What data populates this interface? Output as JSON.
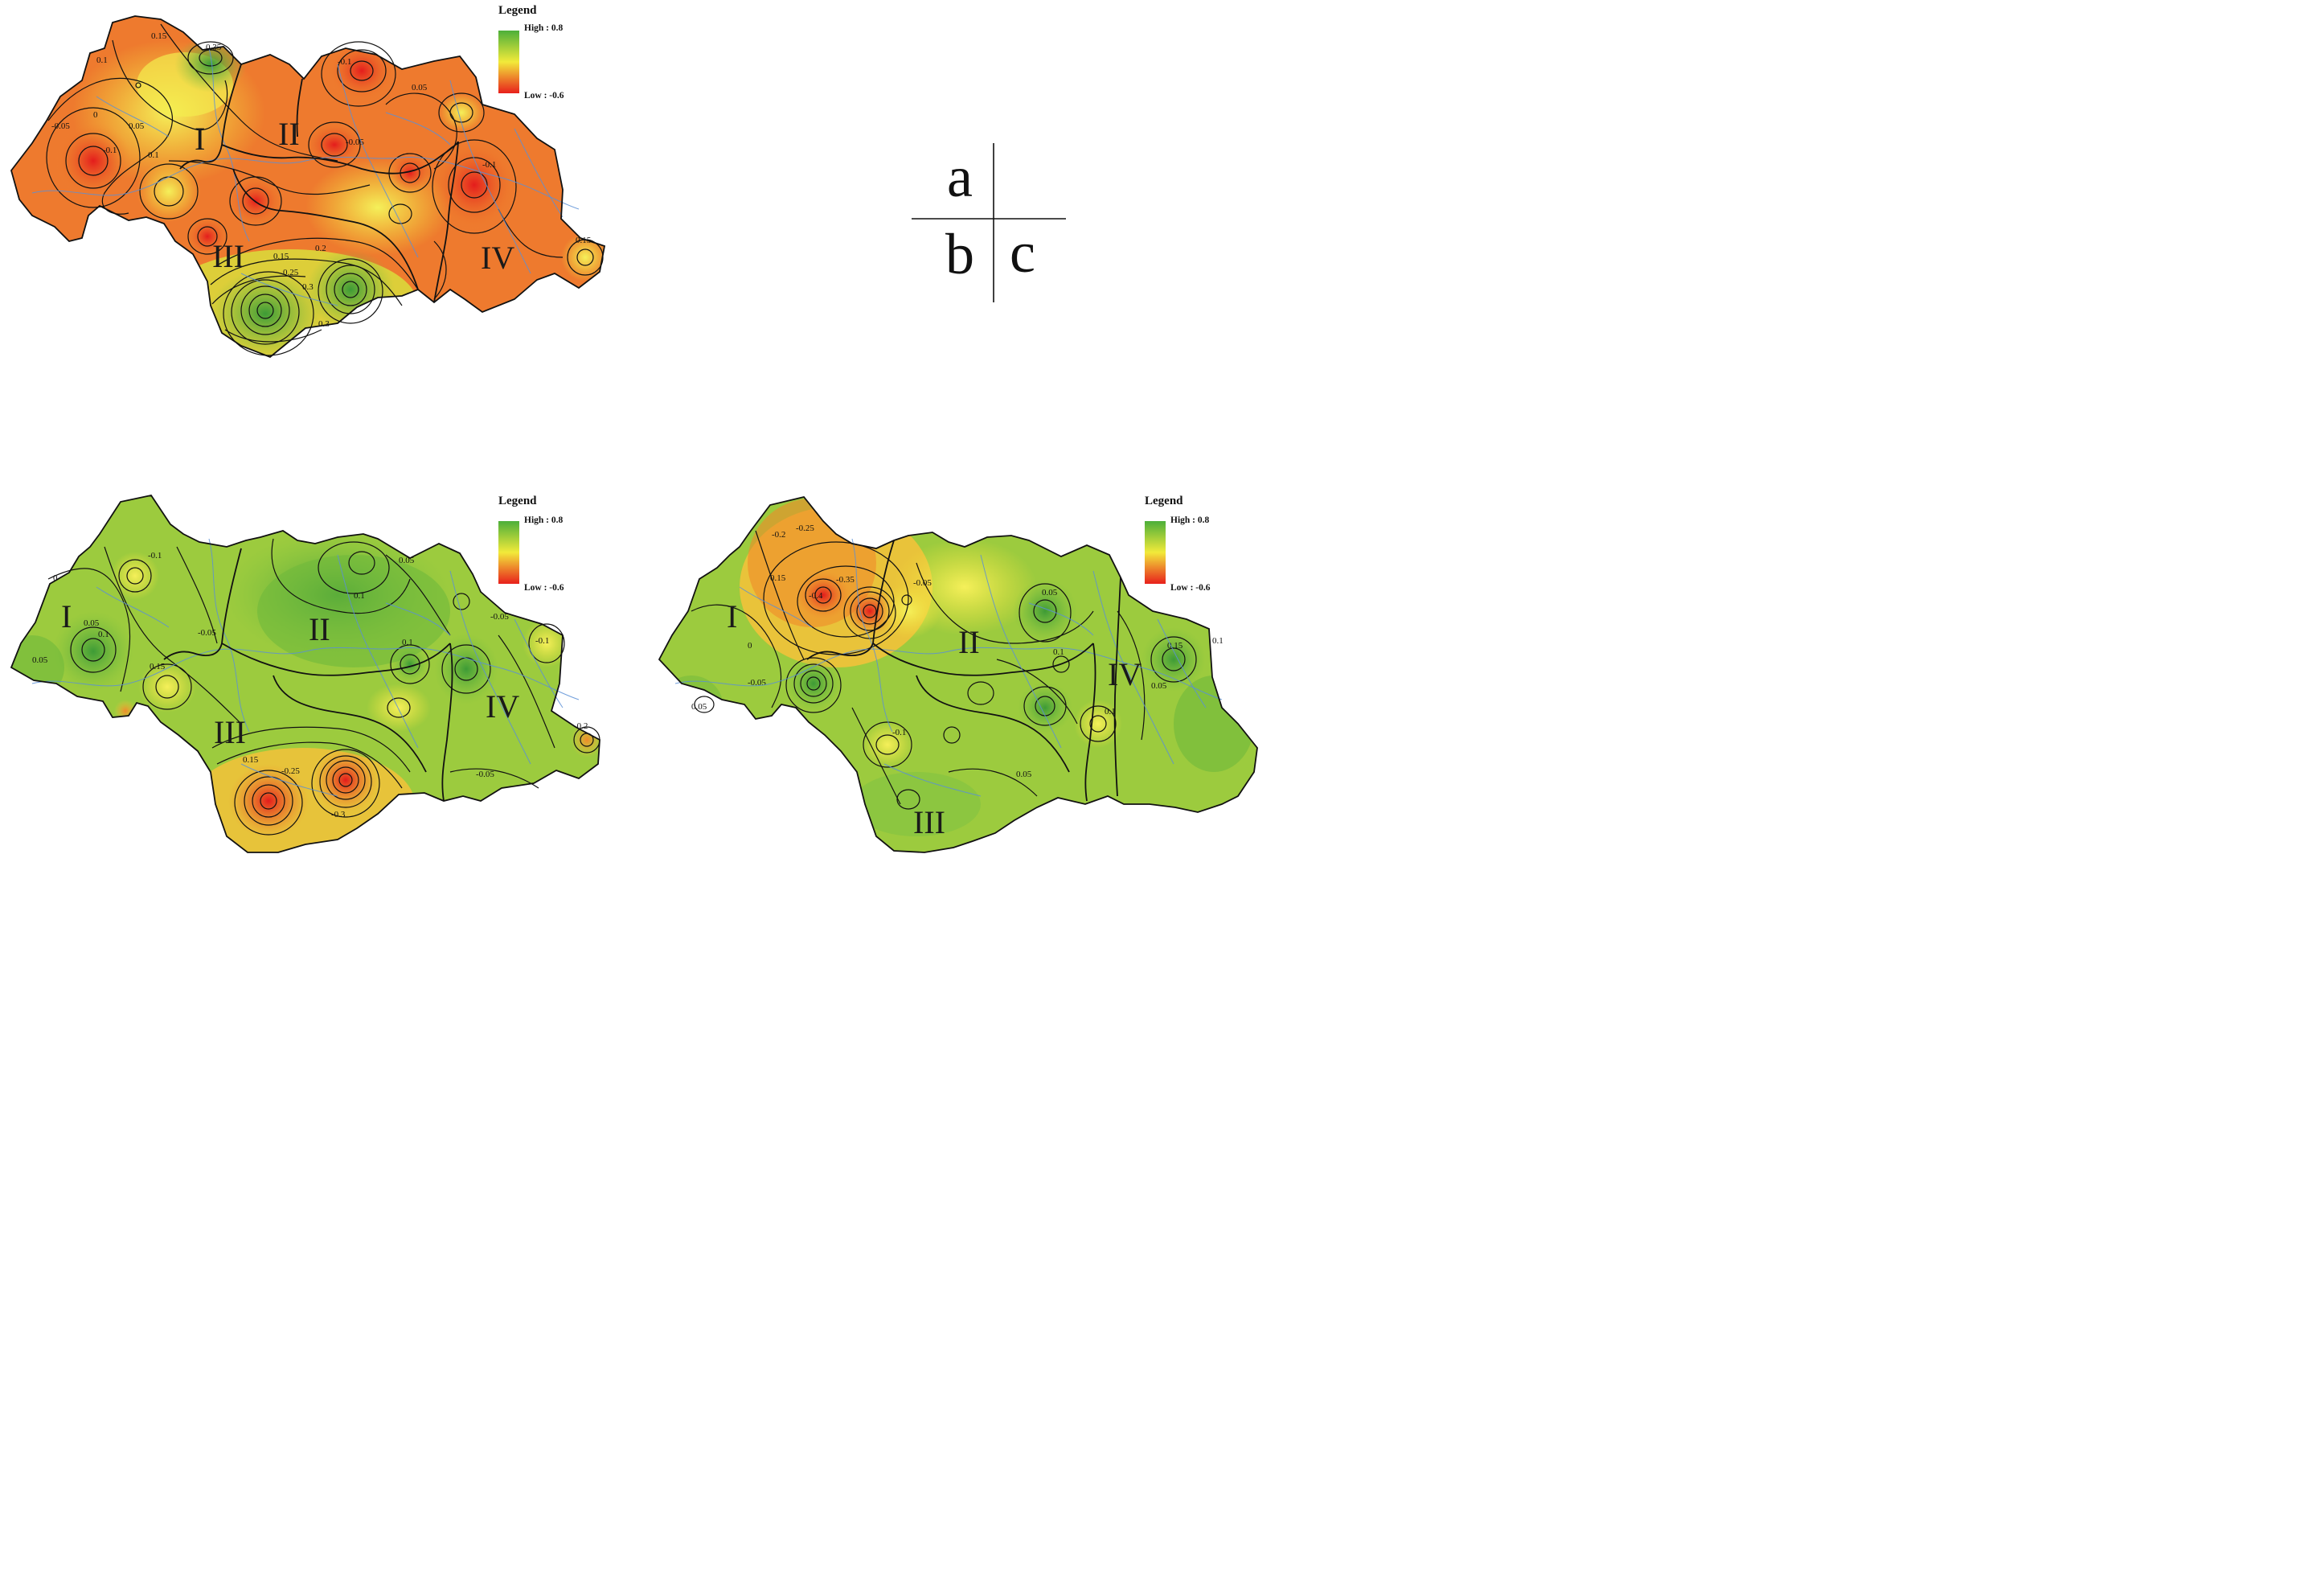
{
  "panels": [
    {
      "id": "a",
      "legend": {
        "title": "Legend",
        "high": "High : 0.8",
        "low": "Low : -0.6"
      },
      "regions": [
        "I",
        "II",
        "III",
        "IV"
      ],
      "contour_labels": [
        "0.15",
        "0.35",
        "0.1",
        "-0.1",
        "0.05",
        "-0.05",
        "0",
        "-0.1",
        "0.1",
        "0.15",
        "0.2",
        "0.25",
        "0.3",
        "0.3",
        "-0.05",
        "0.05",
        "-0.1",
        "0.15"
      ],
      "theme": "warm"
    },
    {
      "id": "b",
      "legend": {
        "title": "Legend",
        "high": "High : 0.8",
        "low": "Low : -0.6"
      },
      "regions": [
        "I",
        "II",
        "III",
        "IV"
      ],
      "contour_labels": [
        "0",
        "-0.1",
        "0.05",
        "0.1",
        "-0.05",
        "0.15",
        "0.1",
        "0.05",
        "0.1",
        "-0.05",
        "-0.1",
        "0.15",
        "-0.25",
        "-0.3",
        "-0.05",
        "0.05",
        "-0.2"
      ],
      "theme": "green"
    },
    {
      "id": "c",
      "legend": {
        "title": "Legend",
        "high": "High : 0.8",
        "low": "Low : -0.6"
      },
      "regions": [
        "I",
        "II",
        "III",
        "IV"
      ],
      "contour_labels": [
        "-0.2",
        "-0.25",
        "0.15",
        "-0.35",
        "-0.4",
        "-0.05",
        "0.05",
        "0.1",
        "0.15",
        "-0.05",
        "0",
        "0.05",
        "-0.1",
        "0.05",
        "0.1",
        "0.05",
        "0.1"
      ],
      "theme": "green"
    }
  ],
  "key": {
    "letters": [
      "a",
      "b",
      "c"
    ]
  },
  "colors": {
    "high": "#4caf3a",
    "mid": "#f2ea3a",
    "low": "#e8201c",
    "river": "#5a8fd6"
  }
}
